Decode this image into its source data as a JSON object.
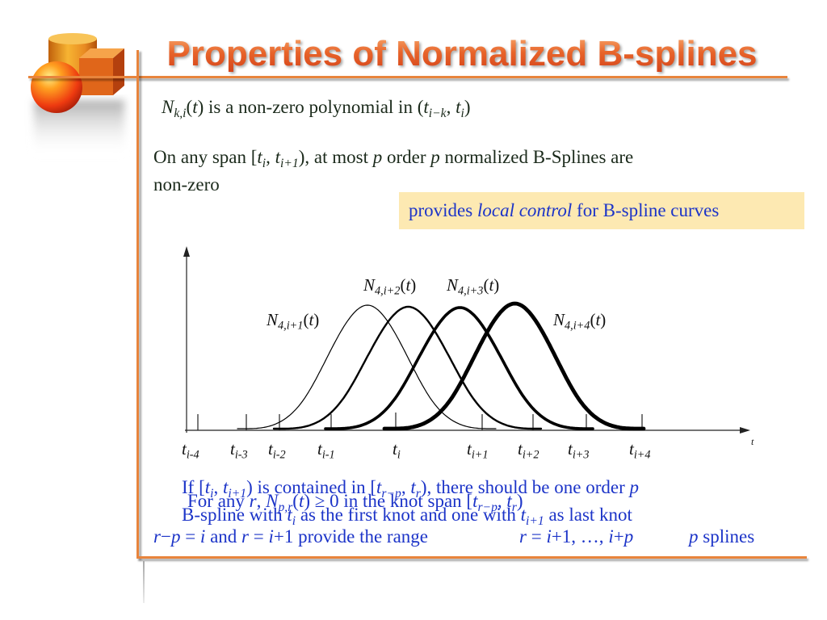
{
  "slide": {
    "title": "Properties of Normalized B-splines"
  },
  "statements": {
    "polynomial": [
      "N",
      "k,i",
      "(",
      "t",
      ") is a non-zero polynomial in (",
      "t",
      "i−k",
      ", ",
      "t",
      "i",
      ")"
    ],
    "span": [
      "On any span [",
      "t",
      "i",
      ", ",
      "t",
      "i+1",
      "), at most ",
      "p",
      " order ",
      "p",
      " normalized B-Splines are",
      "non-zero"
    ],
    "highlight": [
      "provides ",
      "local control",
      " for B-spline curves"
    ]
  },
  "diagram": {
    "curve_labels": [
      [
        "N",
        "4,i+1",
        "(",
        "t",
        ")"
      ],
      [
        "N",
        "4,i+2",
        "(",
        "t",
        ")"
      ],
      [
        "N",
        "4,i+3",
        "(",
        "t",
        ")"
      ],
      [
        "N",
        "4,i+4",
        "(",
        "t",
        ")"
      ]
    ],
    "knot_labels": [
      [
        "t",
        "i-4"
      ],
      [
        "t",
        "i-3"
      ],
      [
        "t",
        "i-2"
      ],
      [
        "t",
        "i-1"
      ],
      [
        "t",
        "i"
      ],
      [
        "t",
        "i+1"
      ],
      [
        "t",
        "i+2"
      ],
      [
        "t",
        "i+3"
      ],
      [
        "t",
        "i+4"
      ]
    ],
    "axis_label": "t"
  },
  "notes": {
    "knot_span": [
      [
        "If [",
        "t",
        "i",
        ", ",
        "t",
        "i+1",
        ") is contained in [",
        "t",
        "r−p",
        ", ",
        "t",
        "r",
        "), there should be one order ",
        "p"
      ],
      [
        "B-spline with ",
        "t",
        "i",
        " as the first knot and one with ",
        "t",
        "i+1",
        " as last knot"
      ]
    ],
    "nonnegativity": [
      "For any ",
      "r",
      ", ",
      "N",
      "p,r",
      "(",
      "t",
      ") ≥ 0 in the knot span [",
      "t",
      "r−p",
      ", ",
      "t",
      "r",
      ")"
    ],
    "range": {
      "condition": [
        "r",
        "−",
        "p",
        " = ",
        "i",
        " and ",
        "r",
        " = ",
        "i",
        "+1 provide the range"
      ],
      "values": [
        "r",
        " = ",
        "i",
        "+1, …, ",
        "i",
        "+",
        "p"
      ],
      "count": [
        "p",
        " splines"
      ]
    }
  },
  "colors": {
    "title": "#d5441a",
    "accent_line": "#e8843c",
    "body_text": "#1b2a1b",
    "highlight_text": "#1c34c8",
    "highlight_box": "#fde9b2",
    "curves": "#000000"
  }
}
